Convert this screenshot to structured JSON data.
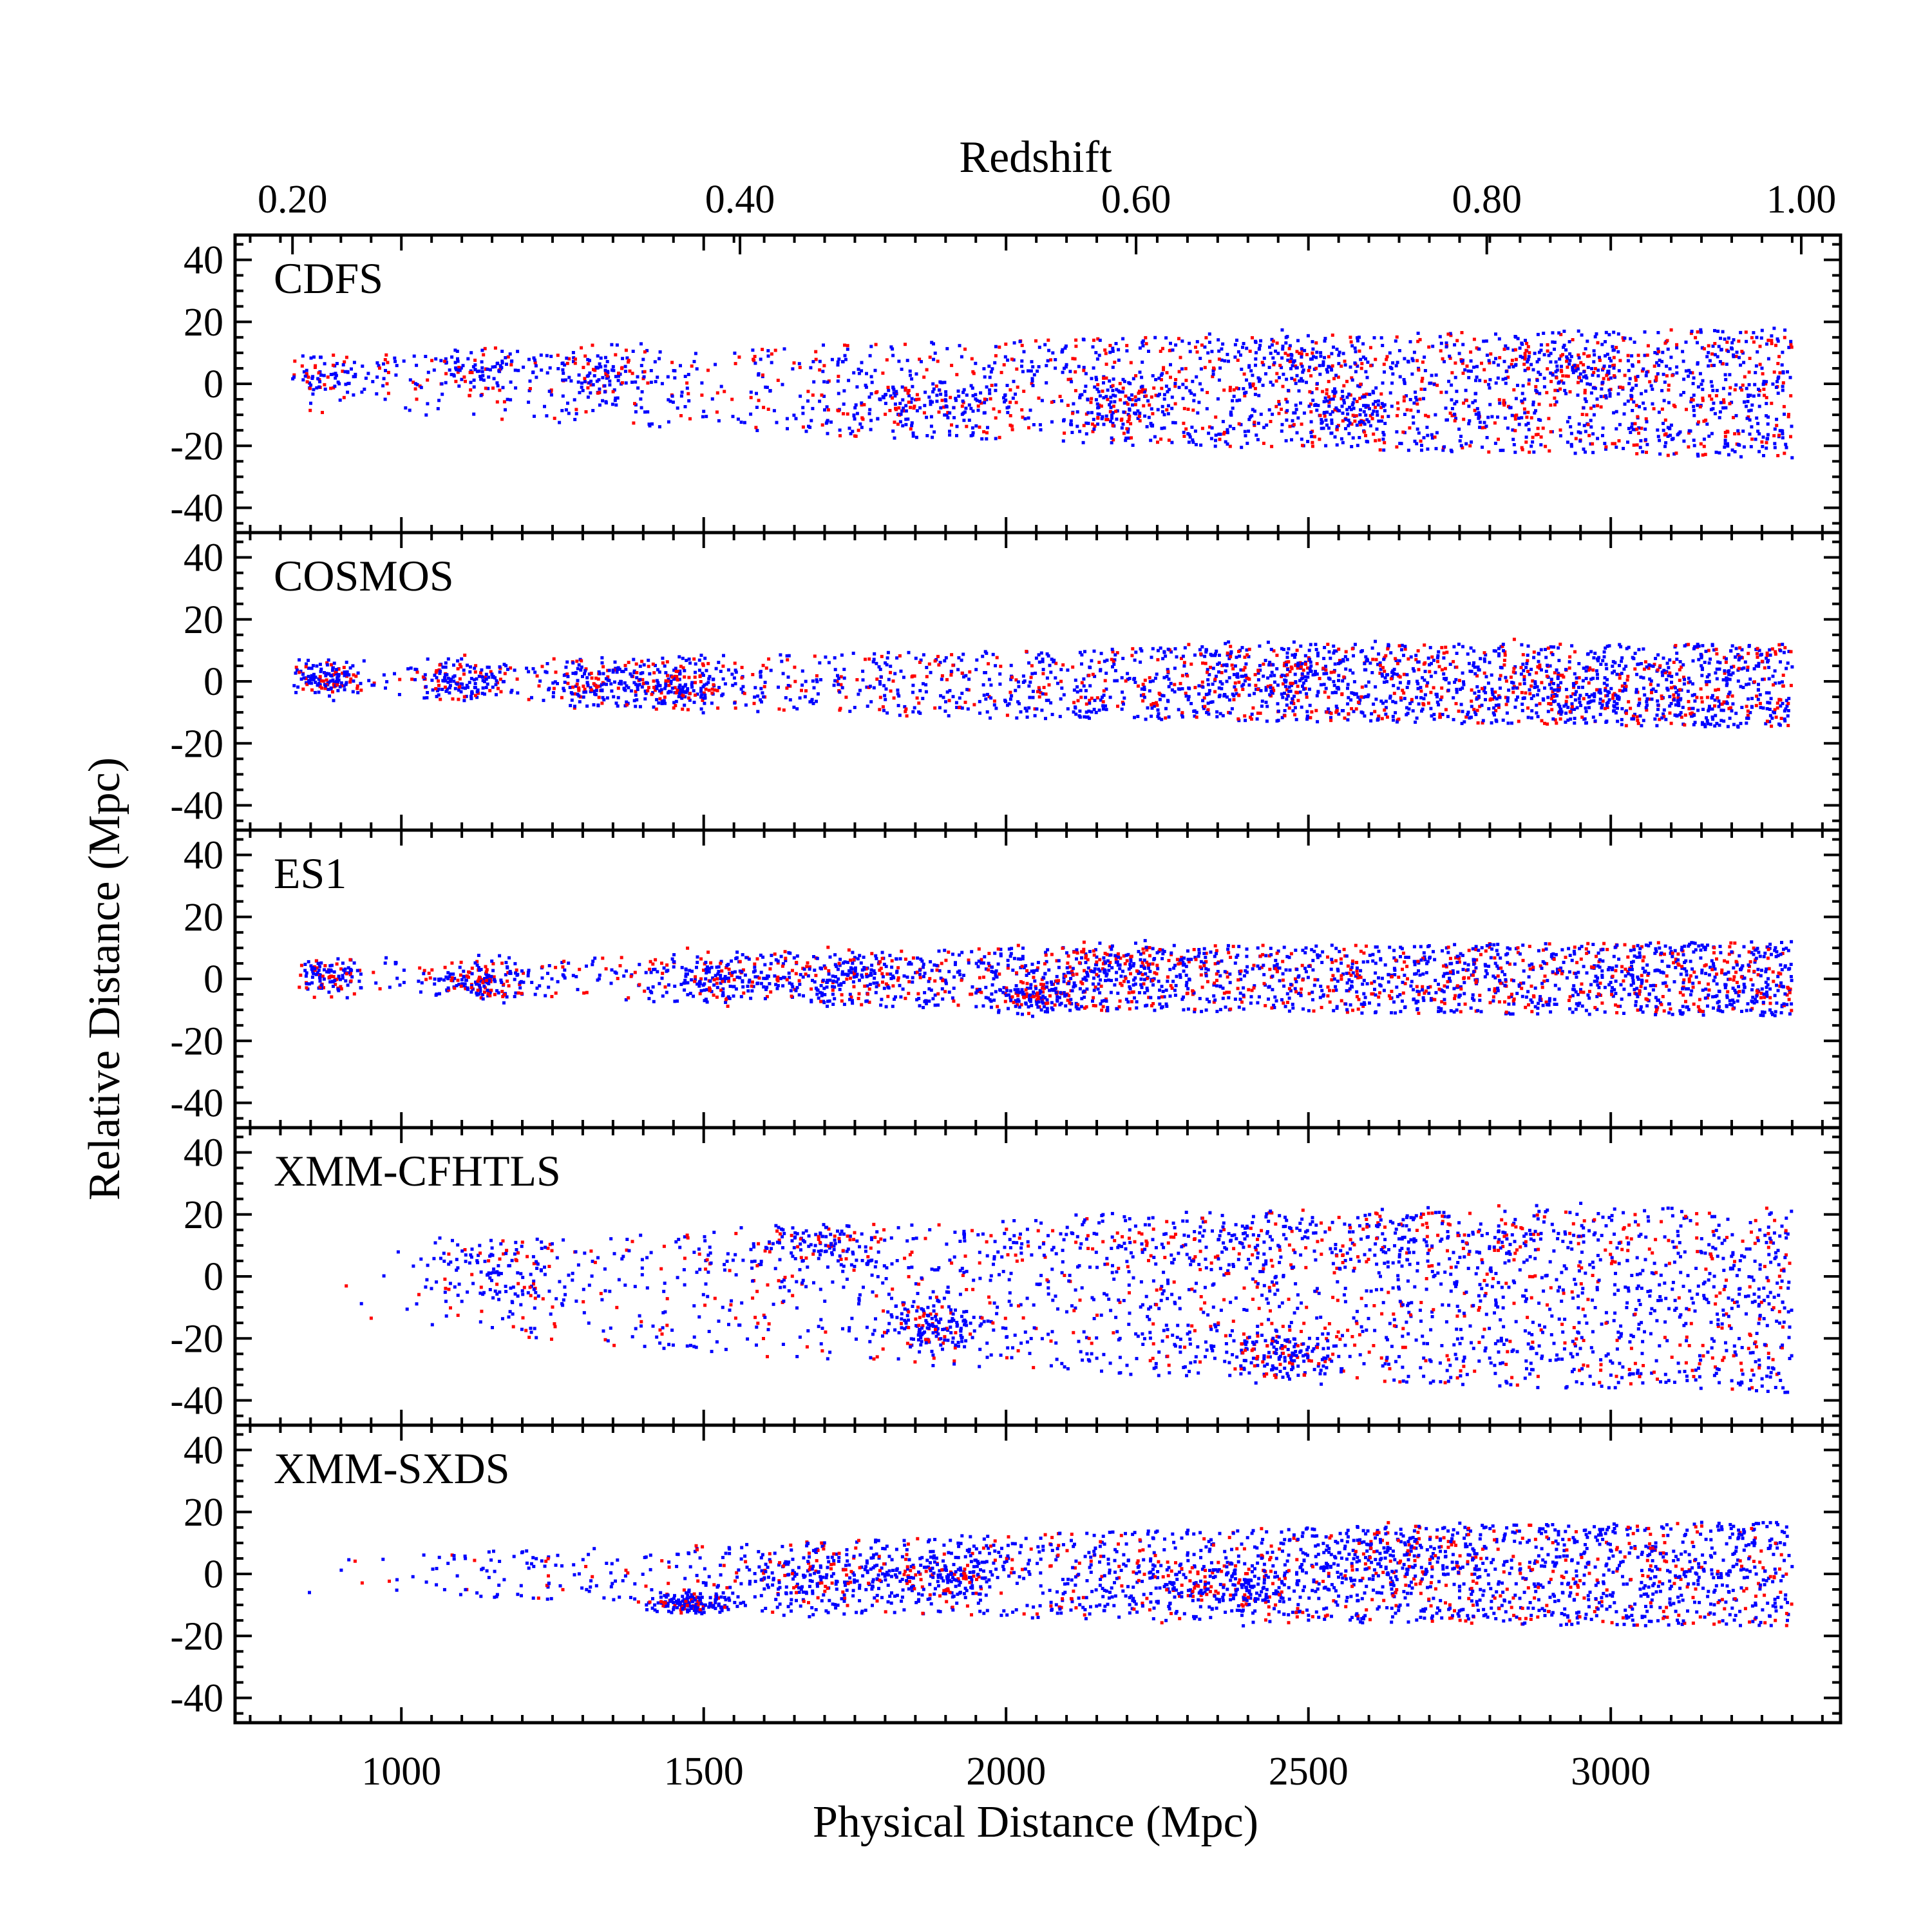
{
  "figure": {
    "top_axis_title": "Redshift",
    "bottom_axis_title": "Physical Distance (Mpc)",
    "y_axis_title": "Relative Distance (Mpc)"
  },
  "chart_data": {
    "type": "scatter",
    "layout": "five vertically stacked panels sharing x axis",
    "xlabel": "Physical Distance (Mpc)",
    "x2label": "Redshift",
    "ylabel": "Relative Distance (Mpc)",
    "xlim": [
      725,
      3380
    ],
    "ylim": [
      -48,
      48
    ],
    "x_ticks": [
      1000,
      1500,
      2000,
      2500,
      3000
    ],
    "x_tick_labels": [
      "1000",
      "1500",
      "2000",
      "2500",
      "3000"
    ],
    "top_ticks": [
      {
        "z": 0.2,
        "label": "0.20",
        "distance": 820
      },
      {
        "z": 0.4,
        "label": "0.40",
        "distance": 1560
      },
      {
        "z": 0.6,
        "label": "0.60",
        "distance": 2215
      },
      {
        "z": 0.8,
        "label": "0.80",
        "distance": 2795
      },
      {
        "z": 1.0,
        "label": "1.00",
        "distance": 3315
      }
    ],
    "y_ticks": [
      40,
      20,
      0,
      -20,
      -40
    ],
    "y_tick_labels": [
      "40",
      "20",
      "0",
      "-20",
      "-40"
    ],
    "grid": false,
    "colors": {
      "blue": "#0000ff",
      "red": "#ff0000",
      "axes": "#000000"
    },
    "panels": [
      {
        "name": "CDFS",
        "x_range": [
          820,
          3300
        ],
        "envelope": [
          [
            820,
            -8,
            7
          ],
          [
            1200,
            -12,
            10
          ],
          [
            1600,
            -16,
            12
          ],
          [
            2000,
            -19,
            14
          ],
          [
            2500,
            -21,
            16
          ],
          [
            3300,
            -24,
            18
          ]
        ],
        "clusters": [
          [
            880,
            3,
            50,
            4
          ],
          [
            1120,
            5,
            60,
            4
          ],
          [
            1330,
            3,
            40,
            5
          ],
          [
            1850,
            -6,
            80,
            4
          ],
          [
            2200,
            -6,
            40,
            5
          ],
          [
            2480,
            8,
            70,
            5
          ],
          [
            2560,
            -8,
            60,
            4
          ],
          [
            2950,
            6,
            60,
            4
          ]
        ],
        "red_fraction": 0.3
      },
      {
        "name": "COSMOS",
        "x_range": [
          820,
          3300
        ],
        "envelope": [
          [
            820,
            -5,
            5
          ],
          [
            1200,
            -7,
            7
          ],
          [
            1600,
            -10,
            9
          ],
          [
            2000,
            -12,
            10
          ],
          [
            2500,
            -13,
            12
          ],
          [
            3300,
            -15,
            12
          ]
        ],
        "clusters": [
          [
            880,
            1,
            30,
            3
          ],
          [
            1100,
            0,
            40,
            3
          ],
          [
            1330,
            0,
            50,
            4
          ],
          [
            1460,
            -1,
            40,
            4
          ],
          [
            2450,
            2,
            80,
            5
          ],
          [
            2950,
            -4,
            80,
            5
          ]
        ],
        "red_fraction": 0.28
      },
      {
        "name": "ES1",
        "x_range": [
          820,
          3300
        ],
        "envelope": [
          [
            820,
            -4,
            5
          ],
          [
            1200,
            -6,
            6
          ],
          [
            1600,
            -8,
            9
          ],
          [
            2000,
            -10,
            10
          ],
          [
            2500,
            -11,
            11
          ],
          [
            3300,
            -12,
            12
          ]
        ],
        "clusters": [
          [
            880,
            1,
            30,
            3
          ],
          [
            1130,
            -1,
            40,
            3
          ],
          [
            1520,
            0,
            60,
            4
          ],
          [
            1760,
            1,
            60,
            4
          ],
          [
            2050,
            -6,
            40,
            3
          ],
          [
            2200,
            5,
            60,
            4
          ]
        ],
        "red_fraction": 0.3
      },
      {
        "name": "XMM-CFHTLS",
        "x_range": [
          820,
          3300
        ],
        "envelope": [
          [
            820,
            -14,
            9
          ],
          [
            1200,
            -20,
            12
          ],
          [
            1600,
            -26,
            15
          ],
          [
            2000,
            -30,
            18
          ],
          [
            2500,
            -34,
            20
          ],
          [
            3300,
            -38,
            23
          ]
        ],
        "clusters": [
          [
            1160,
            2,
            60,
            8
          ],
          [
            1700,
            10,
            60,
            5
          ],
          [
            1880,
            -15,
            50,
            4
          ],
          [
            2300,
            14,
            150,
            5
          ],
          [
            2700,
            12,
            120,
            6
          ],
          [
            2450,
            -25,
            50,
            4
          ]
        ],
        "red_fraction": 0.27
      },
      {
        "name": "XMM-SXDS",
        "x_range": [
          820,
          3300
        ],
        "envelope": [
          [
            820,
            -6,
            5
          ],
          [
            1200,
            -8,
            8
          ],
          [
            1600,
            -12,
            10
          ],
          [
            2000,
            -14,
            13
          ],
          [
            2500,
            -16,
            15
          ],
          [
            3300,
            -17,
            17
          ]
        ],
        "clusters": [
          [
            1480,
            -10,
            30,
            2
          ],
          [
            1700,
            -2,
            80,
            5
          ],
          [
            1900,
            0,
            60,
            4
          ],
          [
            2350,
            -5,
            80,
            5
          ],
          [
            2650,
            5,
            80,
            5
          ]
        ],
        "red_fraction": 0.22
      }
    ]
  }
}
